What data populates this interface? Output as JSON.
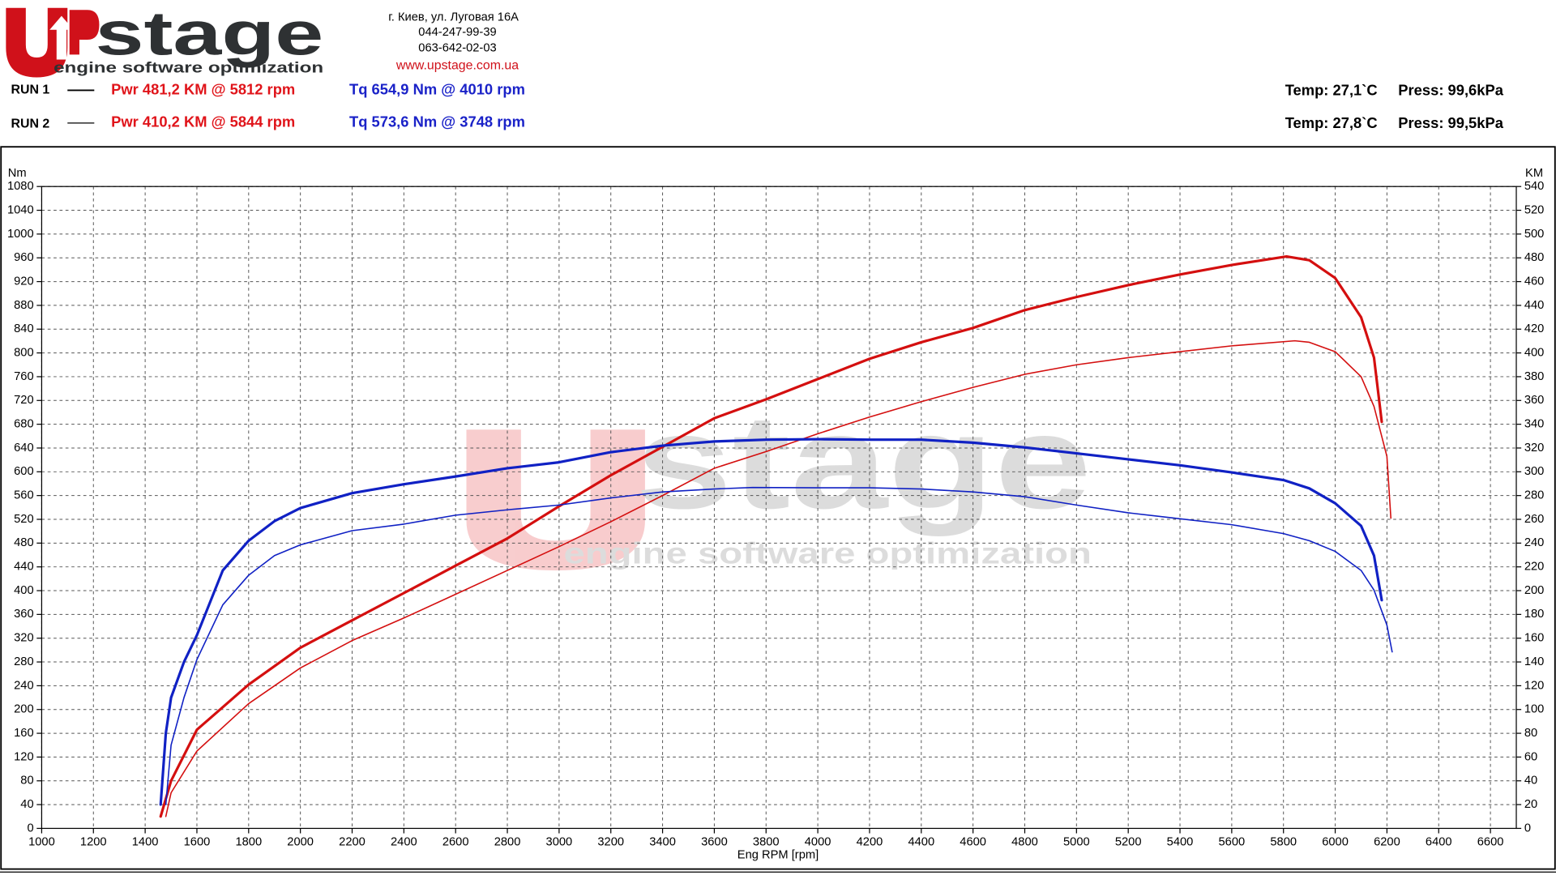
{
  "header": {
    "logo": {
      "name": "stage",
      "tagline": "engine software optimization"
    },
    "address": [
      "г. Киев, ул. Луговая 16А",
      "044-247-99-39",
      "063-642-02-03"
    ],
    "website": "www.upstage.com.ua",
    "runs": [
      {
        "label": "RUN 1",
        "power": "Pwr  481,2 KM @ 5812 rpm",
        "torque": "Tq 654,9 Nm @ 4010 rpm",
        "temp": "Temp: 27,1`C",
        "press": "Press: 99,6kPa"
      },
      {
        "label": "RUN 2",
        "power": "Pwr  410,2 KM @ 5844 rpm",
        "torque": "Tq 573,6 Nm @ 3748 rpm",
        "temp": "Temp: 27,8`C",
        "press": "Press: 99,5kPa"
      }
    ]
  },
  "watermark": {
    "name": "stage",
    "tagline": "engine software optimization"
  },
  "chart_data": {
    "type": "line",
    "x_label": "Eng RPM [rpm]",
    "y_label": "Nm",
    "y2_label": "KM",
    "xlim": [
      1000,
      6700
    ],
    "xticks": [
      1000,
      1200,
      1400,
      1600,
      1800,
      2000,
      2200,
      2400,
      2600,
      2800,
      3000,
      3200,
      3400,
      3600,
      3800,
      4000,
      4200,
      4400,
      4600,
      4800,
      5000,
      5200,
      5400,
      5600,
      5800,
      6000,
      6200,
      6400,
      6600
    ],
    "ylim": [
      0,
      1080
    ],
    "yticks": [
      0,
      40,
      80,
      120,
      160,
      200,
      240,
      280,
      320,
      360,
      400,
      440,
      480,
      520,
      560,
      600,
      640,
      680,
      720,
      760,
      800,
      840,
      880,
      920,
      960,
      1000,
      1040,
      1080
    ],
    "y2lim": [
      0,
      540
    ],
    "y2ticks": [
      0,
      20,
      40,
      60,
      80,
      100,
      120,
      140,
      160,
      180,
      200,
      220,
      240,
      260,
      280,
      300,
      320,
      340,
      360,
      380,
      400,
      420,
      440,
      460,
      480,
      500,
      520,
      540
    ],
    "grid": true,
    "series": [
      {
        "color": "#d40f0f",
        "linewidth": 2.6,
        "axis": "y2",
        "x": [
          1460,
          1500,
          1600,
          1800,
          2000,
          2200,
          2400,
          2600,
          2800,
          3000,
          3200,
          3400,
          3600,
          3800,
          4000,
          4200,
          4400,
          4600,
          4800,
          5000,
          5200,
          5400,
          5600,
          5812,
          5900,
          6000,
          6100,
          6150,
          6180
        ],
        "values": [
          10,
          40,
          83,
          121,
          152,
          175,
          198,
          221,
          244,
          271,
          297,
          321,
          345,
          361,
          378,
          395,
          409,
          421,
          436,
          447,
          457,
          466,
          474,
          481.2,
          478,
          463,
          430,
          396,
          342
        ]
      },
      {
        "color": "#d40f0f",
        "linewidth": 1.3,
        "axis": "y2",
        "x": [
          1480,
          1500,
          1600,
          1800,
          2000,
          2200,
          2400,
          2600,
          2800,
          3000,
          3200,
          3400,
          3600,
          3800,
          4000,
          4200,
          4400,
          4600,
          4800,
          5000,
          5200,
          5400,
          5600,
          5844,
          5900,
          6000,
          6100,
          6150,
          6200,
          6215
        ],
        "values": [
          10,
          30,
          65,
          105,
          135,
          158,
          177,
          197,
          217,
          237,
          258,
          280,
          303,
          317,
          332,
          346,
          359,
          371,
          382,
          390,
          396,
          401,
          406,
          410.2,
          409,
          401,
          380,
          355,
          313,
          261
        ]
      },
      {
        "color": "#1021c4",
        "linewidth": 2.6,
        "axis": "y",
        "x": [
          1460,
          1480,
          1500,
          1550,
          1600,
          1700,
          1800,
          1900,
          2000,
          2200,
          2400,
          2600,
          2800,
          3000,
          3200,
          3400,
          3600,
          3800,
          4010,
          4200,
          4400,
          4600,
          4800,
          5000,
          5200,
          5400,
          5600,
          5800,
          5900,
          6000,
          6100,
          6150,
          6180
        ],
        "values": [
          40,
          160,
          220,
          280,
          325,
          434,
          484,
          517,
          539,
          564,
          579,
          592,
          606,
          616,
          633,
          644,
          651,
          654,
          654.9,
          654,
          654,
          649,
          641,
          631,
          621,
          611,
          599,
          586,
          572,
          547,
          509,
          459,
          384
        ]
      },
      {
        "color": "#1021c4",
        "linewidth": 1.3,
        "axis": "y",
        "x": [
          1480,
          1500,
          1550,
          1600,
          1700,
          1800,
          1900,
          2000,
          2200,
          2400,
          2600,
          2800,
          3000,
          3200,
          3400,
          3600,
          3748,
          4000,
          4200,
          4400,
          4600,
          4800,
          5000,
          5200,
          5400,
          5600,
          5800,
          5900,
          6000,
          6100,
          6150,
          6200,
          6220
        ],
        "values": [
          40,
          140,
          220,
          284,
          376,
          426,
          459,
          477,
          501,
          512,
          527,
          536,
          544,
          556,
          566,
          571,
          573.6,
          573,
          573,
          571,
          566,
          558,
          544,
          531,
          521,
          511,
          496,
          484,
          466,
          434,
          401,
          342,
          297
        ]
      }
    ]
  }
}
